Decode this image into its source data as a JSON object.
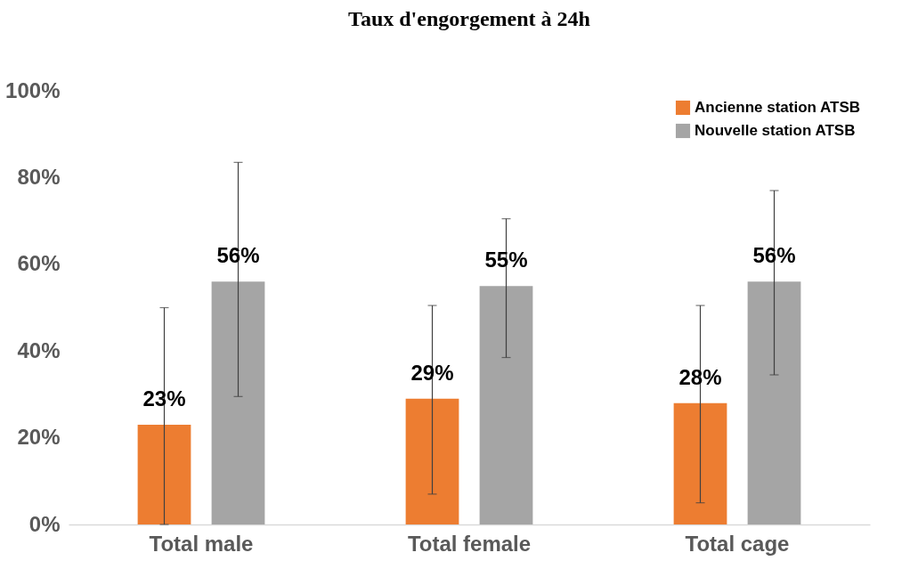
{
  "chart_data": {
    "type": "bar",
    "title": "Taux d'engorgement à 24h",
    "categories": [
      "Total male",
      "Total female",
      "Total cage"
    ],
    "series": [
      {
        "name": "Ancienne station ATSB",
        "color": "#ed7d31",
        "values": [
          23,
          29,
          28
        ],
        "value_labels": [
          "23%",
          "29%",
          "28%"
        ],
        "errors": [
          [
            0,
            50
          ],
          [
            7,
            50.5
          ],
          [
            5,
            50.5
          ]
        ]
      },
      {
        "name": "Nouvelle station ATSB",
        "color": "#a5a5a5",
        "values": [
          56,
          55,
          56
        ],
        "value_labels": [
          "56%",
          "55%",
          "56%"
        ],
        "errors": [
          [
            29.5,
            83.5
          ],
          [
            38.5,
            70.5
          ],
          [
            34.5,
            77
          ]
        ]
      }
    ],
    "ylim": [
      0,
      100
    ],
    "yticks": [
      {
        "value": 0,
        "label": "0%"
      },
      {
        "value": 20,
        "label": "20%"
      },
      {
        "value": 40,
        "label": "40%"
      },
      {
        "value": 60,
        "label": "60%"
      },
      {
        "value": 80,
        "label": "80%"
      },
      {
        "value": 100,
        "label": "100%"
      }
    ],
    "grid": false,
    "legend": "top right"
  }
}
